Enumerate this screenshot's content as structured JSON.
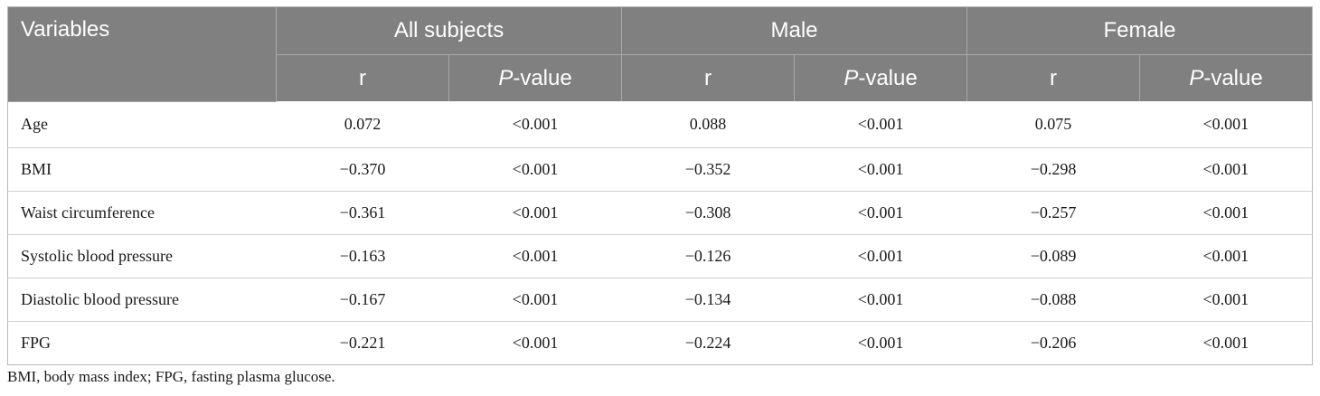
{
  "table": {
    "header": {
      "variables": "Variables",
      "groups": [
        "All subjects",
        "Male",
        "Female"
      ],
      "r_label": "r",
      "p_italic": "P",
      "p_suffix": "-value"
    },
    "rows": [
      {
        "label": "Age",
        "values": [
          "0.072",
          "<0.001",
          "0.088",
          "<0.001",
          "0.075",
          "<0.001"
        ]
      },
      {
        "label": "BMI",
        "values": [
          "−0.370",
          "<0.001",
          "−0.352",
          "<0.001",
          "−0.298",
          "<0.001"
        ]
      },
      {
        "label": "Waist circumference",
        "values": [
          "−0.361",
          "<0.001",
          "−0.308",
          "<0.001",
          "−0.257",
          "<0.001"
        ]
      },
      {
        "label": "Systolic blood pressure",
        "values": [
          "−0.163",
          "<0.001",
          "−0.126",
          "<0.001",
          "−0.089",
          "<0.001"
        ]
      },
      {
        "label": "Diastolic blood pressure",
        "values": [
          "−0.167",
          "<0.001",
          "−0.134",
          "<0.001",
          "−0.088",
          "<0.001"
        ]
      },
      {
        "label": "FPG",
        "values": [
          "−0.221",
          "<0.001",
          "−0.224",
          "<0.001",
          "−0.206",
          "<0.001"
        ]
      }
    ]
  },
  "footnote": "BMI, body mass index; FPG, fasting plasma glucose.",
  "colors": {
    "header_bg": "#808080",
    "header_text": "#ffffff"
  }
}
